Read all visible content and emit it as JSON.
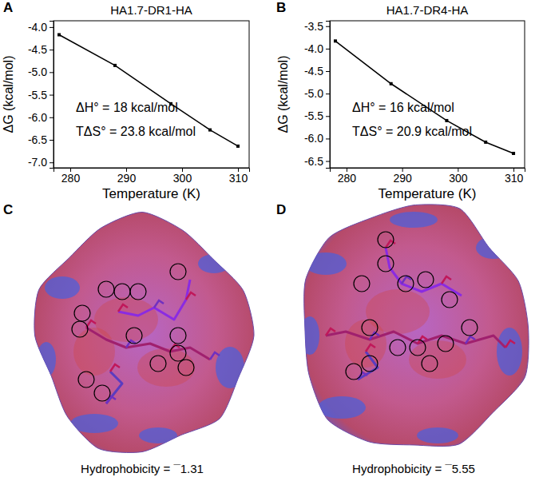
{
  "chart_data": [
    {
      "type": "line",
      "panel": "A",
      "title": "HA1.7-DR1-HA",
      "x_label": "Temperature (K)",
      "y_label": "ΔG (kcal/mol)",
      "x": [
        278,
        288,
        298,
        305,
        310
      ],
      "values": [
        -4.17,
        -4.85,
        -5.7,
        -6.28,
        -6.64
      ],
      "color": "#000000",
      "marker": "square",
      "line_style": "solid",
      "xlim": [
        277,
        312
      ],
      "xticks": [
        280,
        290,
        300,
        310
      ],
      "ylim": [
        -7.12,
        -3.86
      ],
      "yticks": [
        {
          "value": -4,
          "label": "-4.0"
        },
        -4.5,
        {
          "value": -5,
          "label": "-5.0"
        },
        -5.5,
        {
          "value": -6,
          "label": "-6.0"
        },
        -6.5,
        {
          "value": -7,
          "label": "-7.0"
        }
      ],
      "annotations": [
        "ΔH° = 18 kcal/mol",
        "TΔS° = 23.8 kcal/mol"
      ]
    },
    {
      "type": "line",
      "panel": "B",
      "title": "HA1.7-DR4-HA",
      "x_label": "Temperature (K)",
      "y_label": "ΔG (kcal/mol)",
      "x": [
        278,
        288,
        298,
        305,
        310
      ],
      "values": [
        -3.83,
        -4.78,
        -5.6,
        -6.08,
        -6.33
      ],
      "color": "#000000",
      "marker": "square",
      "line_style": "solid",
      "xlim": [
        277,
        312
      ],
      "xticks": [
        280,
        290,
        300,
        310
      ],
      "ylim": [
        -6.65,
        -3.38
      ],
      "yticks": [
        -3.5,
        {
          "value": -4,
          "label": "-4.0"
        },
        -4.5,
        {
          "value": -5,
          "label": "-5.0"
        },
        -5.5,
        {
          "value": -6,
          "label": "-6.0"
        },
        -6.5
      ],
      "annotations": [
        "ΔH° = 16 kcal/mol",
        "TΔS° = 20.9 kcal/mol"
      ]
    }
  ],
  "panels": [
    {
      "label": "C",
      "caption": "Hydrophobicity = ¯1.31"
    },
    {
      "label": "D",
      "caption": "Hydrophobicity = ¯5.55"
    }
  ]
}
